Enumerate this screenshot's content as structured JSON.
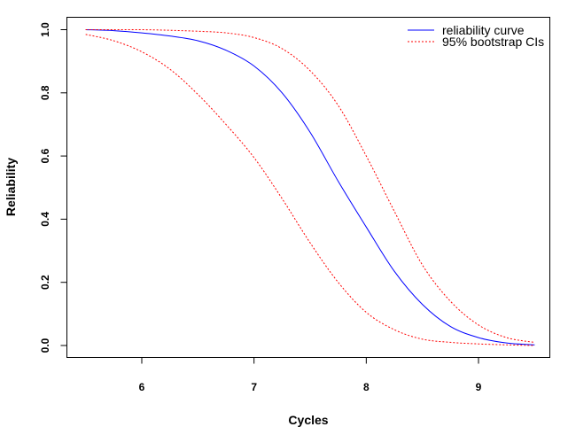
{
  "chart_data": {
    "type": "line",
    "title": "",
    "xlabel": "Cycles",
    "ylabel": "Reliability",
    "xlim": [
      5.5,
      9.5
    ],
    "ylim": [
      0.0,
      1.0
    ],
    "x_ticks": [
      "6",
      "7",
      "8",
      "9"
    ],
    "y_ticks": [
      "0.0",
      "0.2",
      "0.4",
      "0.6",
      "0.8",
      "1.0"
    ],
    "grid": false,
    "legend_position": "top-right",
    "series": [
      {
        "name": "reliability curve",
        "color": "#0000ff",
        "line_style": "solid",
        "x": [
          5.5,
          5.75,
          6.0,
          6.25,
          6.5,
          6.75,
          7.0,
          7.25,
          7.5,
          7.75,
          8.0,
          8.25,
          8.5,
          8.75,
          9.0,
          9.25,
          9.5
        ],
        "y": [
          1.0,
          0.997,
          0.99,
          0.98,
          0.965,
          0.935,
          0.885,
          0.8,
          0.675,
          0.52,
          0.375,
          0.235,
          0.13,
          0.06,
          0.025,
          0.008,
          0.002
        ]
      },
      {
        "name": "95% bootstrap CIs",
        "color": "#ff0000",
        "line_style": "dotted",
        "x": [
          5.5,
          5.75,
          6.0,
          6.25,
          6.5,
          6.75,
          7.0,
          7.25,
          7.5,
          7.75,
          8.0,
          8.25,
          8.5,
          8.75,
          9.0,
          9.25,
          9.5
        ],
        "y": [
          0.985,
          0.965,
          0.93,
          0.875,
          0.795,
          0.7,
          0.595,
          0.465,
          0.325,
          0.2,
          0.105,
          0.05,
          0.02,
          0.01,
          0.005,
          0.002,
          0.0
        ]
      },
      {
        "name": "",
        "color": "#ff0000",
        "line_style": "dotted",
        "x": [
          5.5,
          5.75,
          6.0,
          6.25,
          6.5,
          6.75,
          7.0,
          7.25,
          7.5,
          7.75,
          8.0,
          8.25,
          8.5,
          8.75,
          9.0,
          9.25,
          9.5
        ],
        "y": [
          1.0,
          1.0,
          1.0,
          0.998,
          0.995,
          0.99,
          0.975,
          0.94,
          0.87,
          0.76,
          0.6,
          0.425,
          0.255,
          0.14,
          0.065,
          0.025,
          0.01
        ]
      }
    ],
    "legend": [
      {
        "label": "reliability curve",
        "color": "#0000ff",
        "line_style": "solid"
      },
      {
        "label": "95% bootstrap CIs",
        "color": "#ff0000",
        "line_style": "dotted"
      }
    ]
  }
}
